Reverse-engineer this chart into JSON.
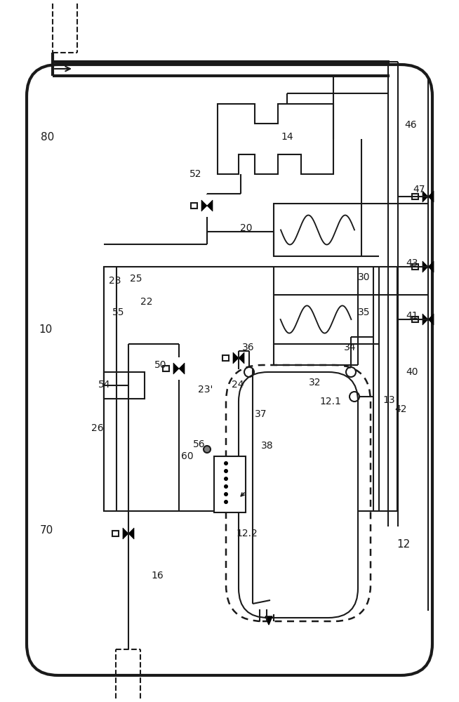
{
  "bg_color": "#ffffff",
  "line_color": "#1a1a1a",
  "lw": 1.5,
  "tlw": 3.0,
  "fig_width": 6.54,
  "fig_height": 10.0
}
